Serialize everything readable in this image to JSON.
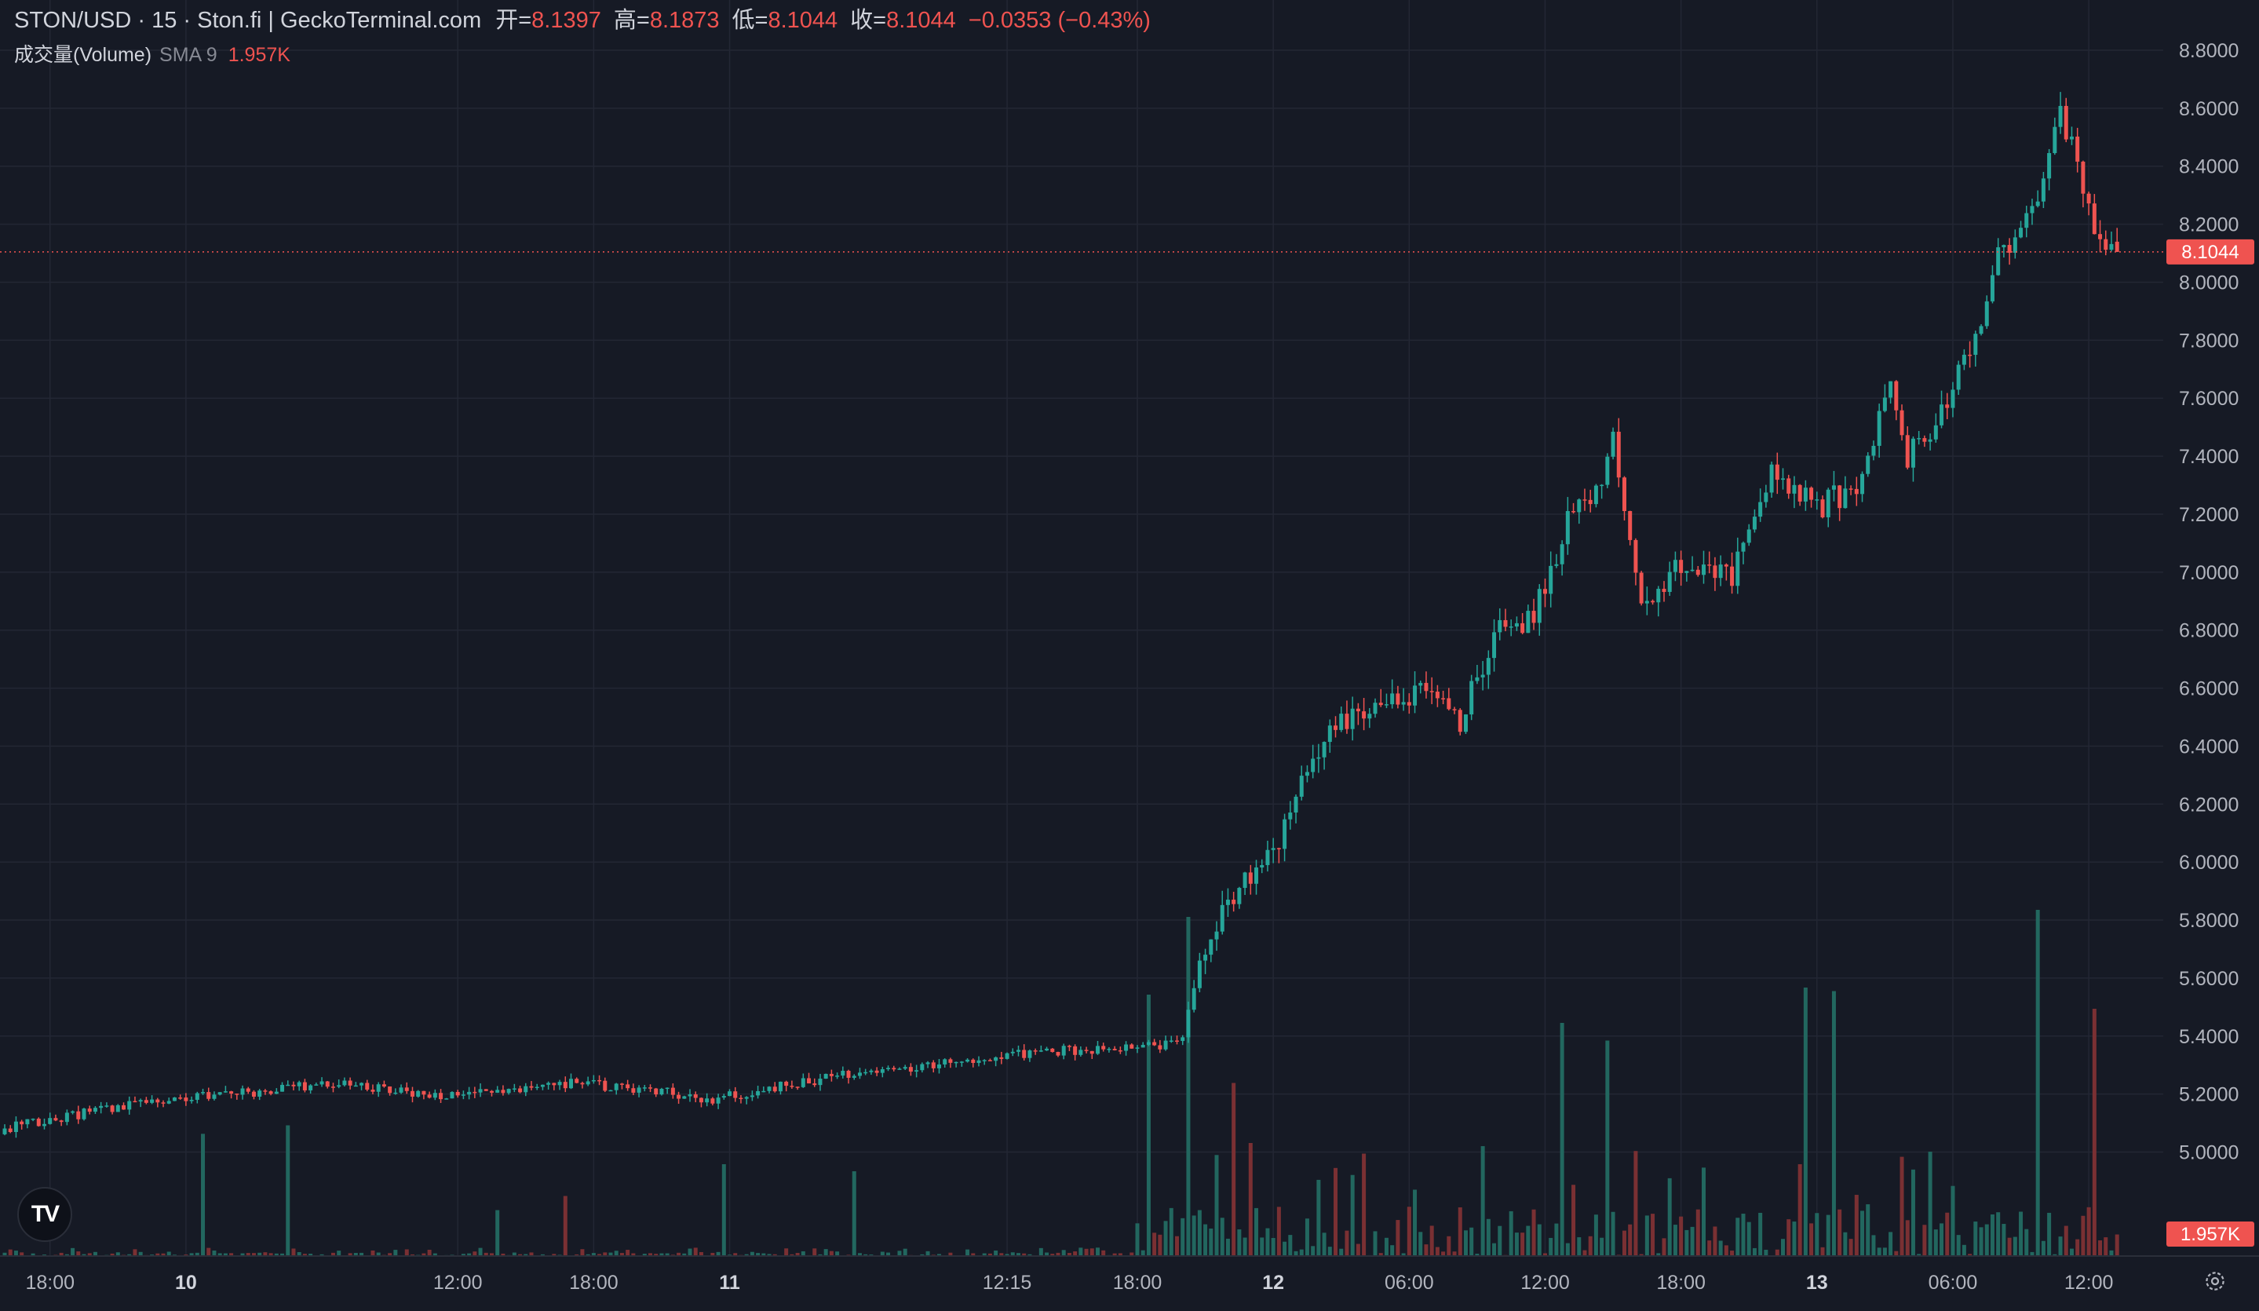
{
  "legend": {
    "title": "STON/USD · 15 · Ston.fi | GeckoTerminal.com",
    "open_key": "开=",
    "open": "8.1397",
    "high_key": "高=",
    "high": "8.1873",
    "low_key": "低=",
    "low": "8.1044",
    "close_key": "收=",
    "close": "8.1044",
    "change": "−0.0353 (−0.43%)"
  },
  "volume_legend": {
    "label": "成交量(Volume)",
    "sma": "SMA 9",
    "value": "1.957K"
  },
  "price_badge": "8.1044",
  "volume_badge": "1.957K",
  "icons": {
    "logo": "tradingview-logo-icon",
    "settings": "gear-icon"
  },
  "colors": {
    "background": "#161a25",
    "grid": "#232734",
    "up": "#26a69a",
    "down": "#ef5350",
    "volume_up": "#22675f",
    "volume_down": "#7a3033"
  },
  "chart_data": {
    "type": "candlestick",
    "title": "STON/USD · 15 · Ston.fi | GeckoTerminal.com",
    "interval": "15",
    "grid": true,
    "price_axis": {
      "position": "right",
      "range": [
        4.95,
        8.8
      ],
      "ticks": [
        "8.8000",
        "8.6000",
        "8.4000",
        "8.2000",
        "8.0000",
        "7.8000",
        "7.6000",
        "7.4000",
        "7.2000",
        "7.0000",
        "6.8000",
        "6.6000",
        "6.4000",
        "6.2000",
        "6.0000",
        "5.8000",
        "5.6000",
        "5.4000",
        "5.2000",
        "5.0000"
      ],
      "last_price": 8.1044
    },
    "time_axis": {
      "ticks": [
        {
          "label": "18:00",
          "bold": false,
          "bar": 8
        },
        {
          "label": "10",
          "bold": true,
          "bar": 32
        },
        {
          "label": "12:00",
          "bold": false,
          "bar": 80
        },
        {
          "label": "18:00",
          "bold": false,
          "bar": 104
        },
        {
          "label": "11",
          "bold": true,
          "bar": 128
        },
        {
          "label": "12:15",
          "bold": false,
          "bar": 177
        },
        {
          "label": "18:00",
          "bold": false,
          "bar": 200
        },
        {
          "label": "12",
          "bold": true,
          "bar": 224
        },
        {
          "label": "06:00",
          "bold": false,
          "bar": 248
        },
        {
          "label": "12:00",
          "bold": false,
          "bar": 272
        },
        {
          "label": "18:00",
          "bold": false,
          "bar": 296
        },
        {
          "label": "13",
          "bold": true,
          "bar": 320
        },
        {
          "label": "06:00",
          "bold": false,
          "bar": 344
        },
        {
          "label": "12:00",
          "bold": false,
          "bar": 368
        }
      ]
    },
    "anchors": [
      [
        0,
        5.08
      ],
      [
        10,
        5.12
      ],
      [
        25,
        5.17
      ],
      [
        40,
        5.2
      ],
      [
        60,
        5.24
      ],
      [
        75,
        5.19
      ],
      [
        90,
        5.22
      ],
      [
        100,
        5.24
      ],
      [
        115,
        5.21
      ],
      [
        125,
        5.18
      ],
      [
        135,
        5.22
      ],
      [
        150,
        5.27
      ],
      [
        165,
        5.3
      ],
      [
        185,
        5.35
      ],
      [
        200,
        5.36
      ],
      [
        208,
        5.38
      ],
      [
        212,
        5.7
      ],
      [
        216,
        5.86
      ],
      [
        220,
        5.95
      ],
      [
        225,
        6.08
      ],
      [
        230,
        6.3
      ],
      [
        235,
        6.48
      ],
      [
        241,
        6.52
      ],
      [
        250,
        6.6
      ],
      [
        257,
        6.48
      ],
      [
        263,
        6.78
      ],
      [
        270,
        6.85
      ],
      [
        276,
        7.18
      ],
      [
        282,
        7.3
      ],
      [
        284,
        7.45
      ],
      [
        289,
        6.88
      ],
      [
        295,
        7.0
      ],
      [
        305,
        6.98
      ],
      [
        312,
        7.35
      ],
      [
        320,
        7.22
      ],
      [
        327,
        7.3
      ],
      [
        333,
        7.62
      ],
      [
        336,
        7.4
      ],
      [
        342,
        7.55
      ],
      [
        348,
        7.8
      ],
      [
        352,
        8.1
      ],
      [
        358,
        8.22
      ],
      [
        361,
        8.45
      ],
      [
        363,
        8.58
      ],
      [
        366,
        8.4
      ],
      [
        368,
        8.25
      ],
      [
        371,
        8.12
      ],
      [
        373,
        8.14
      ]
    ],
    "last_candle": {
      "open": 8.1397,
      "high": 8.1873,
      "low": 8.1044,
      "close": 8.1044
    },
    "volume": {
      "label": "成交量(Volume)",
      "sma": "SMA 9",
      "last_value": "1.957K",
      "spikes": [
        {
          "bar": 35,
          "value": 1.73
        },
        {
          "bar": 50,
          "value": 1.85
        },
        {
          "bar": 87,
          "value": 0.65
        },
        {
          "bar": 99,
          "value": 0.85
        },
        {
          "bar": 127,
          "value": 1.3
        },
        {
          "bar": 150,
          "value": 1.2
        },
        {
          "bar": 202,
          "value": 3.7
        },
        {
          "bar": 209,
          "value": 4.8
        },
        {
          "bar": 217,
          "value": 2.45
        },
        {
          "bar": 220,
          "value": 1.6
        },
        {
          "bar": 275,
          "value": 3.3
        },
        {
          "bar": 283,
          "value": 3.05
        },
        {
          "bar": 318,
          "value": 3.8
        },
        {
          "bar": 323,
          "value": 3.75
        },
        {
          "bar": 359,
          "value": 4.9
        },
        {
          "bar": 369,
          "value": 3.5
        }
      ]
    }
  }
}
